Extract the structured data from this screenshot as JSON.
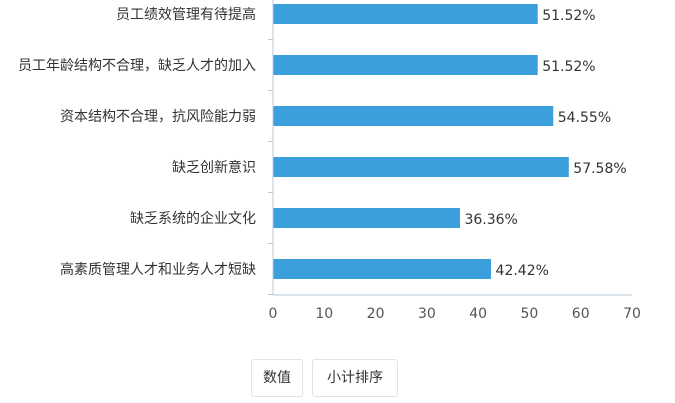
{
  "chart_data": {
    "type": "bar",
    "orientation": "horizontal",
    "categories": [
      "员工绩效管理有待提高",
      "员工年龄结构不合理，缺乏人才的加入",
      "资本结构不合理，抗风险能力弱",
      "缺乏创新意识",
      "缺乏系统的企业文化",
      "高素质管理人才和业务人才短缺"
    ],
    "values": [
      51.52,
      51.52,
      54.55,
      57.58,
      36.36,
      42.42
    ],
    "value_labels": [
      "51.52%",
      "51.52%",
      "54.55%",
      "57.58%",
      "36.36%",
      "42.42%"
    ],
    "xlim": [
      0,
      70
    ],
    "xticks": [
      "0",
      "10",
      "20",
      "30",
      "40",
      "50",
      "60",
      "70"
    ],
    "bar_color": "#3a9fdb",
    "axis_color": "#b8c9d9",
    "grid": false
  },
  "controls": {
    "value_button": "数值",
    "sort_button": "小计排序"
  }
}
